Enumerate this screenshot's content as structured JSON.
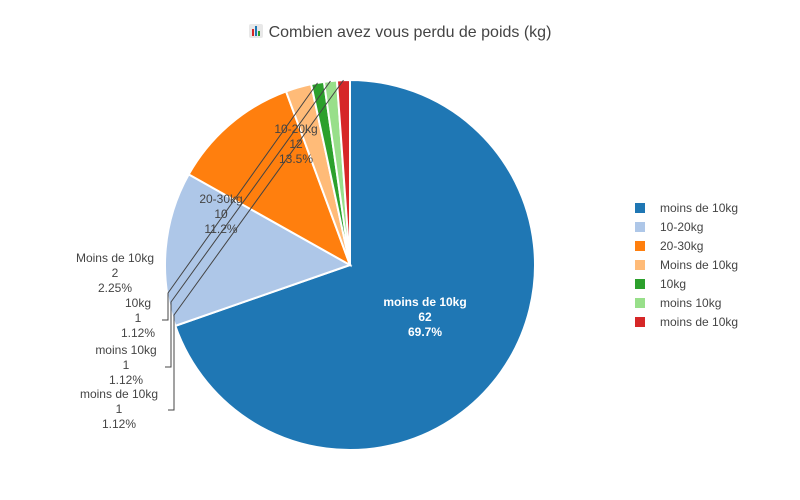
{
  "chart_data": {
    "type": "pie",
    "title": "Combien avez vous perdu de poids (kg)",
    "title_icon": "bar-chart-icon",
    "legend_position": "right",
    "slices": [
      {
        "label": "moins de 10kg",
        "value": 62,
        "percent_label": "69.7%",
        "color": "#1f77b4"
      },
      {
        "label": "10-20kg",
        "value": 12,
        "percent_label": "13.5%",
        "color": "#aec7e8"
      },
      {
        "label": "20-30kg",
        "value": 10,
        "percent_label": "11.2%",
        "color": "#ff7f0e"
      },
      {
        "label": "Moins de 10kg",
        "value": 2,
        "percent_label": "2.25%",
        "color": "#ffbb78"
      },
      {
        "label": "10kg",
        "value": 1,
        "percent_label": "1.12%",
        "color": "#2ca02c"
      },
      {
        "label": "moins 10kg",
        "value": 1,
        "percent_label": "1.12%",
        "color": "#98df8a"
      },
      {
        "label": "moins de 10kg",
        "value": 1,
        "percent_label": "1.12%",
        "color": "#d62728"
      }
    ]
  }
}
